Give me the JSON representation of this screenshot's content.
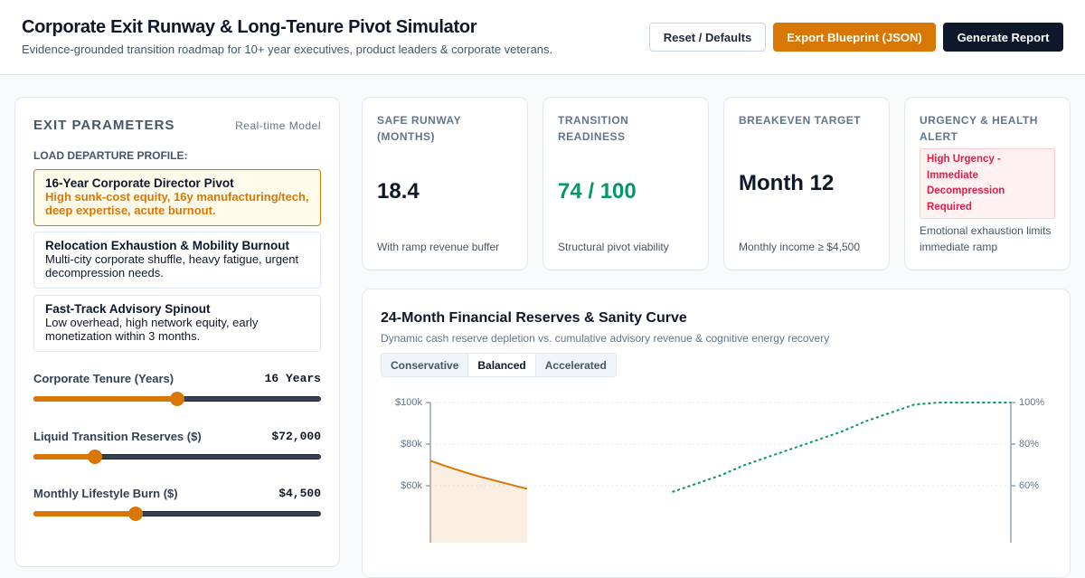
{
  "header": {
    "title": "Corporate Exit Runway & Long-Tenure Pivot Simulator",
    "subtitle": "Evidence-grounded transition roadmap for 10+ year executives, product leaders & corporate veterans.",
    "buttons": [
      "Reset / Defaults",
      "Export Blueprint (JSON)",
      "Generate Report"
    ]
  },
  "parameters": {
    "title": "EXIT PARAMETERS",
    "mode": "Real-time Model",
    "profile_label": "LOAD DEPARTURE PROFILE:",
    "profiles": [
      {
        "title": "16-Year Corporate Director Pivot",
        "description": "High sunk-cost equity, 16y manufacturing/tech, deep expertise, acute burnout."
      },
      {
        "title": "Relocation Exhaustion & Mobility Burnout",
        "description": "Multi-city corporate shuffle, heavy fatigue, urgent decompression needs."
      },
      {
        "title": "Fast-Track Advisory Spinout",
        "description": "Low overhead, high network equity, early monetization within 3 months."
      }
    ],
    "sliders": [
      {
        "label": "Corporate Tenure (Years)",
        "value": "16 Years"
      },
      {
        "label": "Liquid Transition Reserves ($)",
        "value": "$72,000"
      },
      {
        "label": "Monthly Lifestyle Burn ($)",
        "value": "$4,500"
      }
    ]
  },
  "metrics": [
    {
      "label": "SAFE RUNWAY (MONTHS)",
      "value": "18.4",
      "note": "With ramp revenue buffer"
    },
    {
      "label": "TRANSITION READINESS",
      "value": "74 / 100",
      "note": "Structural pivot viability"
    },
    {
      "label": "BREAKEVEN TARGET",
      "value": "Month 12",
      "note": "Monthly income ≥ $4,500"
    },
    {
      "label": "URGENCY & HEALTH ALERT",
      "badge": "High Urgency - Immediate Decompression Required",
      "note": "Emotional exhaustion limits immediate ramp"
    }
  ],
  "chart": {
    "title": "24-Month Financial Reserves & Sanity Curve",
    "subtitle": "Dynamic cash reserve depletion vs. cumulative advisory revenue & cognitive energy recovery",
    "tabs": [
      "Conservative",
      "Balanced",
      "Accelerated"
    ],
    "yticks": [
      {
        "value": 100000,
        "label": "$100k"
      },
      {
        "value": 80000,
        "label": "$80k"
      },
      {
        "value": 60000,
        "label": "$60k"
      }
    ],
    "y2ticks": [
      {
        "value": 100,
        "label": "100%"
      },
      {
        "value": 80,
        "label": "80%"
      },
      {
        "value": 60,
        "label": "60%"
      }
    ],
    "series": [
      {
        "color": "#d97706",
        "values": [
          72000,
          68000,
          64500,
          61500,
          58500,
          null,
          null,
          null,
          null,
          null,
          null,
          null,
          null,
          null,
          null,
          null,
          null,
          null,
          null,
          null,
          null,
          null,
          null,
          null,
          null
        ]
      },
      {
        "color": "#059669",
        "axis": "y2",
        "values": [
          null,
          null,
          null,
          null,
          null,
          null,
          null,
          null,
          null,
          null,
          57,
          61,
          65,
          70,
          74,
          78,
          82,
          86,
          91,
          95,
          99,
          100,
          100,
          100,
          100
        ]
      }
    ]
  }
}
